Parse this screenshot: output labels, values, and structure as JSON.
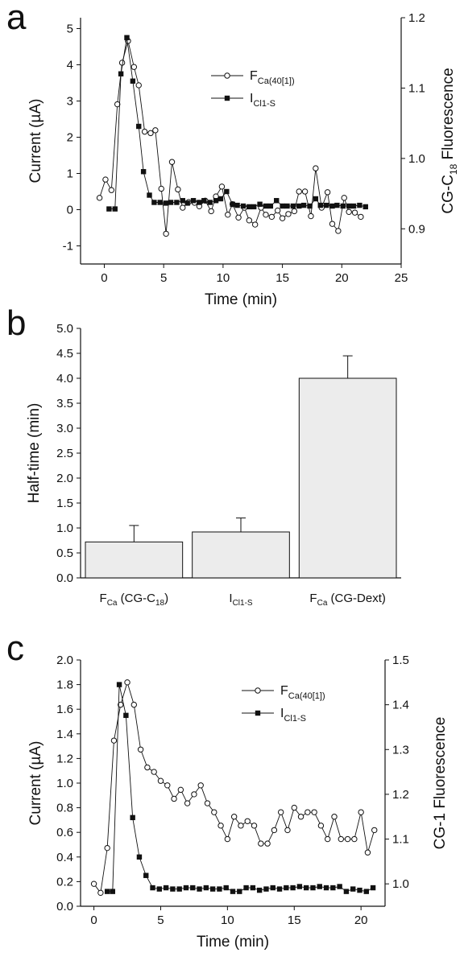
{
  "panels": {
    "a": {
      "letter": "a",
      "chart_data": {
        "type": "line",
        "xlabel": "Time (min)",
        "ylabel_left": "Current (µA)",
        "ylabel_right_main": "CG-C",
        "ylabel_right_sub": "18",
        "ylabel_right_tail": " Fluorescence",
        "xlim": [
          -2,
          25
        ],
        "ylim_left": [
          -1.5,
          5.3
        ],
        "ylim_right": [
          0.85,
          1.2
        ],
        "x_ticks": [
          "0",
          "5",
          "10",
          "15",
          "20",
          "25"
        ],
        "y_ticks_left": [
          "-1",
          "0",
          "1",
          "2",
          "3",
          "4",
          "5"
        ],
        "y_ticks_right": [
          "0.9",
          "1.0",
          "1.1",
          "1.2"
        ],
        "series": [
          {
            "name_main": "F",
            "name_sub": "Ca(40[1])",
            "marker": "open-circle",
            "axis": "right",
            "x": [
              -0.4,
              0.1,
              0.6,
              1.1,
              1.5,
              2.0,
              2.5,
              2.9,
              3.4,
              3.9,
              4.3,
              4.8,
              5.2,
              5.7,
              6.2,
              6.6,
              7.1,
              7.6,
              8.0,
              8.5,
              9.0,
              9.4,
              9.9,
              10.4,
              10.8,
              11.3,
              11.8,
              12.2,
              12.7,
              13.2,
              13.6,
              14.1,
              14.6,
              15.0,
              15.5,
              16.0,
              16.4,
              16.9,
              17.4,
              17.8,
              18.3,
              18.8,
              19.2,
              19.7,
              20.2,
              20.6,
              21.1,
              21.6
            ],
            "y": [
              0.944,
              0.97,
              0.955,
              1.077,
              1.136,
              1.167,
              1.13,
              1.104,
              1.038,
              1.036,
              1.04,
              0.957,
              0.893,
              0.995,
              0.956,
              0.93,
              0.938,
              0.937,
              0.932,
              0.94,
              0.925,
              0.946,
              0.96,
              0.92,
              0.935,
              0.916,
              0.93,
              0.912,
              0.906,
              0.93,
              0.92,
              0.917,
              0.926,
              0.915,
              0.921,
              0.925,
              0.953,
              0.953,
              0.918,
              0.986,
              0.93,
              0.952,
              0.907,
              0.897,
              0.944,
              0.924,
              0.923,
              0.917
            ]
          },
          {
            "name_main": "I",
            "name_sub": "Cl1-S",
            "marker": "filled-square",
            "axis": "left",
            "x": [
              0.4,
              0.9,
              1.4,
              1.9,
              2.4,
              2.9,
              3.3,
              3.8,
              4.2,
              4.7,
              5.2,
              5.6,
              6.1,
              6.6,
              7.0,
              7.5,
              8.0,
              8.4,
              8.9,
              9.4,
              9.8,
              10.3,
              10.8,
              11.2,
              11.7,
              12.2,
              12.6,
              13.1,
              13.6,
              14.0,
              14.5,
              15.0,
              15.4,
              15.9,
              16.4,
              16.8,
              17.3,
              17.8,
              18.2,
              18.7,
              19.2,
              19.6,
              20.1,
              20.6,
              21.0,
              21.5,
              22.0
            ],
            "y": [
              0.02,
              0.02,
              3.75,
              4.75,
              3.55,
              2.3,
              1.05,
              0.4,
              0.2,
              0.2,
              0.18,
              0.2,
              0.2,
              0.25,
              0.18,
              0.25,
              0.2,
              0.25,
              0.2,
              0.25,
              0.3,
              0.5,
              0.15,
              0.12,
              0.1,
              0.08,
              0.08,
              0.15,
              0.1,
              0.1,
              0.25,
              0.1,
              0.1,
              0.1,
              0.1,
              0.12,
              0.1,
              0.3,
              0.12,
              0.12,
              0.1,
              0.12,
              0.1,
              0.1,
              0.1,
              0.12,
              0.08
            ]
          }
        ]
      }
    },
    "b": {
      "letter": "b",
      "chart_data": {
        "type": "bar",
        "ylabel": "Half-time (min)",
        "ylim": [
          0,
          5.0
        ],
        "y_ticks": [
          "0.0",
          "0.5",
          "1.0",
          "1.5",
          "2.0",
          "2.5",
          "3.0",
          "3.5",
          "4.0",
          "4.5",
          "5.0"
        ],
        "categories": [
          {
            "main": "F",
            "sub": "Ca",
            "tail": " (CG-C",
            "sub2": "18",
            "end": ")"
          },
          {
            "main": "I",
            "sub": "Cl1-S",
            "tail": "",
            "sub2": "",
            "end": ""
          },
          {
            "main": "F",
            "sub": "Ca",
            "tail": " (CG-Dext)",
            "sub2": "",
            "end": ""
          }
        ],
        "values": [
          0.72,
          0.92,
          4.0
        ],
        "errors": [
          0.33,
          0.28,
          0.45
        ]
      }
    },
    "c": {
      "letter": "c",
      "chart_data": {
        "type": "line",
        "xlabel": "Time (min)",
        "ylabel_left": "Current (µA)",
        "ylabel_right_main": "CG-1 Fluorescence",
        "xlim": [
          -1,
          21.8
        ],
        "ylim_left": [
          0,
          2.0
        ],
        "ylim_right": [
          0.95,
          1.5
        ],
        "x_ticks": [
          "0",
          "5",
          "10",
          "15",
          "20"
        ],
        "y_ticks_left": [
          "0.0",
          "0.2",
          "0.4",
          "0.6",
          "0.8",
          "1.0",
          "1.2",
          "1.4",
          "1.6",
          "1.8",
          "2.0"
        ],
        "y_ticks_right": [
          "1.0",
          "1.1",
          "1.2",
          "1.3",
          "1.4",
          "1.5"
        ],
        "series": [
          {
            "name_main": "F",
            "name_sub": "Ca(40[1])",
            "marker": "open-circle",
            "axis": "right",
            "x": [
              0.0,
              0.5,
              1.0,
              1.5,
              2.0,
              2.5,
              3.0,
              3.5,
              4.0,
              4.5,
              5.0,
              5.5,
              6.0,
              6.5,
              7.0,
              7.5,
              8.0,
              8.5,
              9.0,
              9.5,
              10.0,
              10.5,
              11.0,
              11.5,
              12.0,
              12.5,
              13.0,
              13.5,
              14.0,
              14.5,
              15.0,
              15.5,
              16.0,
              16.5,
              17.0,
              17.5,
              18.0,
              18.5,
              19.0,
              19.5,
              20.0,
              20.5,
              21.0
            ],
            "y": [
              1.0,
              0.98,
              1.08,
              1.32,
              1.4,
              1.45,
              1.4,
              1.3,
              1.26,
              1.25,
              1.23,
              1.22,
              1.19,
              1.21,
              1.18,
              1.2,
              1.22,
              1.18,
              1.16,
              1.13,
              1.1,
              1.15,
              1.13,
              1.14,
              1.13,
              1.09,
              1.09,
              1.12,
              1.16,
              1.12,
              1.17,
              1.15,
              1.16,
              1.16,
              1.13,
              1.1,
              1.15,
              1.1,
              1.1,
              1.1,
              1.16,
              1.07,
              1.12
            ]
          },
          {
            "name_main": "I",
            "name_sub": "Cl1-S",
            "marker": "filled-square",
            "axis": "left",
            "x": [
              1.0,
              1.4,
              1.9,
              2.4,
              2.9,
              3.4,
              3.9,
              4.4,
              4.9,
              5.4,
              5.9,
              6.4,
              6.9,
              7.4,
              7.9,
              8.4,
              8.9,
              9.4,
              9.9,
              10.4,
              10.9,
              11.4,
              11.9,
              12.4,
              12.9,
              13.4,
              13.9,
              14.4,
              14.9,
              15.4,
              15.9,
              16.4,
              16.9,
              17.4,
              17.9,
              18.4,
              18.9,
              19.4,
              19.9,
              20.4,
              20.9
            ],
            "y": [
              0.12,
              0.12,
              1.8,
              1.55,
              0.72,
              0.4,
              0.25,
              0.15,
              0.14,
              0.15,
              0.14,
              0.14,
              0.15,
              0.15,
              0.14,
              0.15,
              0.14,
              0.14,
              0.15,
              0.12,
              0.12,
              0.15,
              0.15,
              0.13,
              0.14,
              0.15,
              0.14,
              0.15,
              0.15,
              0.16,
              0.15,
              0.15,
              0.16,
              0.15,
              0.15,
              0.16,
              0.12,
              0.14,
              0.13,
              0.12,
              0.15
            ]
          }
        ]
      }
    }
  }
}
